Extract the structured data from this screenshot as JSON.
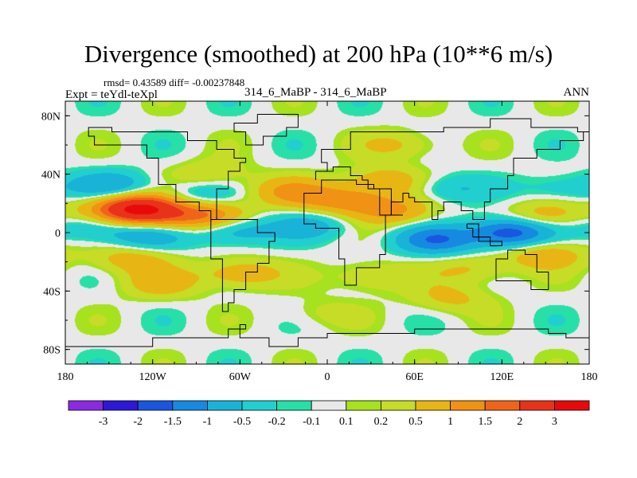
{
  "chart_data": {
    "type": "heatmap",
    "title": "Divergence (smoothed) at 200 hPa (10**6 m/s)",
    "stats_line": "rmsd= 0.43589 diff= -0.00237848",
    "left_label": "Expt = teYdl-teXpl",
    "center_label": "314_6_MaBP - 314_6_MaBP",
    "right_label": "ANN",
    "x_range": [
      -180,
      180
    ],
    "y_range": [
      -90,
      90
    ],
    "x_ticks": [
      {
        "value": -180,
        "label": "180"
      },
      {
        "value": -120,
        "label": "120W"
      },
      {
        "value": -60,
        "label": "60W"
      },
      {
        "value": 0,
        "label": "0"
      },
      {
        "value": 60,
        "label": "60E"
      },
      {
        "value": 120,
        "label": "120E"
      },
      {
        "value": 180,
        "label": "180"
      }
    ],
    "y_ticks": [
      {
        "value": 80,
        "label": "80N"
      },
      {
        "value": 40,
        "label": "40N"
      },
      {
        "value": 0,
        "label": "0"
      },
      {
        "value": -40,
        "label": "40S"
      },
      {
        "value": -80,
        "label": "80S"
      }
    ],
    "levels": [
      "-3",
      "-2",
      "-1.5",
      "-1",
      "-0.5",
      "-0.2",
      "-0.1",
      "0.1",
      "0.2",
      "0.5",
      "1",
      "1.5",
      "2",
      "3"
    ],
    "colors": [
      "#8a2be2",
      "#2d17d8",
      "#1a56e0",
      "#1689e0",
      "#1ab3d8",
      "#22cfcf",
      "#27e0a8",
      "#e8e8e8",
      "#a6e21e",
      "#c6dc26",
      "#e8b614",
      "#f09214",
      "#f0641a",
      "#e8321a",
      "#e80a0a"
    ],
    "fields": [
      {
        "lon": -128,
        "lat": 16,
        "value": 3.0
      },
      {
        "lon": -150,
        "lat": 16,
        "value": 0.7
      },
      {
        "lon": -100,
        "lat": 10,
        "value": 0.6
      },
      {
        "lon": -148,
        "lat": 32,
        "value": -0.9
      },
      {
        "lon": -160,
        "lat": 4,
        "value": -0.7
      },
      {
        "lon": -125,
        "lat": -3,
        "value": -0.8
      },
      {
        "lon": -135,
        "lat": -18,
        "value": 0.8
      },
      {
        "lon": -90,
        "lat": 25,
        "value": -0.6
      },
      {
        "lon": -80,
        "lat": 12,
        "value": 1.3
      },
      {
        "lon": -65,
        "lat": 2,
        "value": -1.0
      },
      {
        "lon": -60,
        "lat": -28,
        "value": 0.9
      },
      {
        "lon": -25,
        "lat": 28,
        "value": 1.0
      },
      {
        "lon": -10,
        "lat": 5,
        "value": -0.7
      },
      {
        "lon": 10,
        "lat": 22,
        "value": 1.2
      },
      {
        "lon": 40,
        "lat": 35,
        "value": 0.9
      },
      {
        "lon": 45,
        "lat": 15,
        "value": 1.1
      },
      {
        "lon": 80,
        "lat": 30,
        "value": -0.6
      },
      {
        "lon": 75,
        "lat": -5,
        "value": -1.4
      },
      {
        "lon": 125,
        "lat": 0,
        "value": -1.9
      },
      {
        "lon": 150,
        "lat": 12,
        "value": 0.8
      },
      {
        "lon": 150,
        "lat": -15,
        "value": 0.9
      },
      {
        "lon": 100,
        "lat": -25,
        "value": 0.6
      },
      {
        "lon": 30,
        "lat": -30,
        "value": 0.6
      },
      {
        "lon": -115,
        "lat": -35,
        "value": 0.7
      },
      {
        "lon": -80,
        "lat": 40,
        "value": 0.5
      },
      {
        "lon": 160,
        "lat": 30,
        "value": -0.5
      },
      {
        "lon": 85,
        "lat": -45,
        "value": 0.6
      },
      {
        "lon": -5,
        "lat": -55,
        "value": 0.3
      },
      {
        "lon": 50,
        "lat": 60,
        "value": 0.6
      }
    ],
    "coastlines": [
      [
        [
          -80,
          8
        ],
        [
          -78,
          30
        ],
        [
          -70,
          43
        ],
        [
          -60,
          47
        ],
        [
          -55,
          50
        ],
        [
          -65,
          58
        ],
        [
          -78,
          62
        ],
        [
          -95,
          68
        ],
        [
          -125,
          70
        ],
        [
          -150,
          71
        ],
        [
          -165,
          66
        ],
        [
          -160,
          59
        ],
        [
          -140,
          60
        ],
        [
          -125,
          50
        ],
        [
          -117,
          33
        ],
        [
          -105,
          20
        ],
        [
          -90,
          15
        ],
        [
          -80,
          8
        ]
      ],
      [
        [
          -80,
          10
        ],
        [
          -62,
          10
        ],
        [
          -50,
          0
        ],
        [
          -35,
          -7
        ],
        [
          -40,
          -22
        ],
        [
          -48,
          -28
        ],
        [
          -58,
          -38
        ],
        [
          -65,
          -48
        ],
        [
          -70,
          -55
        ],
        [
          -73,
          -45
        ],
        [
          -72,
          -18
        ],
        [
          -80,
          -2
        ],
        [
          -80,
          10
        ]
      ],
      [
        [
          -17,
          15
        ],
        [
          -17,
          28
        ],
        [
          -5,
          36
        ],
        [
          10,
          37
        ],
        [
          20,
          33
        ],
        [
          33,
          31
        ],
        [
          43,
          13
        ],
        [
          51,
          12
        ],
        [
          40,
          -15
        ],
        [
          35,
          -25
        ],
        [
          20,
          -35
        ],
        [
          12,
          -18
        ],
        [
          9,
          3
        ],
        [
          -8,
          5
        ],
        [
          -17,
          15
        ]
      ],
      [
        [
          -10,
          36
        ],
        [
          -9,
          43
        ],
        [
          0,
          48
        ],
        [
          -5,
          58
        ],
        [
          10,
          58
        ],
        [
          15,
          69
        ],
        [
          30,
          70
        ],
        [
          45,
          68
        ],
        [
          60,
          69
        ],
        [
          80,
          73
        ],
        [
          110,
          77
        ],
        [
          140,
          73
        ],
        [
          170,
          70
        ],
        [
          180,
          68
        ],
        [
          175,
          62
        ],
        [
          160,
          58
        ],
        [
          142,
          52
        ],
        [
          128,
          40
        ],
        [
          122,
          31
        ],
        [
          110,
          21
        ],
        [
          106,
          10
        ],
        [
          100,
          8
        ],
        [
          98,
          16
        ],
        [
          92,
          22
        ],
        [
          80,
          15
        ],
        [
          77,
          8
        ],
        [
          72,
          20
        ],
        [
          58,
          25
        ],
        [
          55,
          26
        ],
        [
          52,
          20
        ],
        [
          43,
          13
        ],
        [
          35,
          30
        ],
        [
          28,
          36
        ],
        [
          22,
          40
        ],
        [
          15,
          45
        ],
        [
          3,
          43
        ],
        [
          -10,
          36
        ]
      ],
      [
        [
          114,
          -22
        ],
        [
          114,
          -34
        ],
        [
          130,
          -32
        ],
        [
          140,
          -38
        ],
        [
          150,
          -37
        ],
        [
          153,
          -27
        ],
        [
          145,
          -15
        ],
        [
          137,
          -12
        ],
        [
          130,
          -12
        ],
        [
          122,
          -17
        ],
        [
          114,
          -22
        ]
      ],
      [
        [
          95,
          5
        ],
        [
          105,
          -6
        ],
        [
          118,
          -9
        ],
        [
          110,
          -3
        ],
        [
          100,
          2
        ],
        [
          95,
          5
        ]
      ],
      [
        [
          -180,
          -78
        ],
        [
          -150,
          -77
        ],
        [
          -120,
          -73
        ],
        [
          -90,
          -72
        ],
        [
          -70,
          -66
        ],
        [
          -58,
          -63
        ],
        [
          -60,
          -72
        ],
        [
          -40,
          -78
        ],
        [
          -20,
          -73
        ],
        [
          0,
          -70
        ],
        [
          30,
          -69
        ],
        [
          60,
          -67
        ],
        [
          90,
          -66
        ],
        [
          120,
          -66
        ],
        [
          150,
          -68
        ],
        [
          165,
          -72
        ],
        [
          180,
          -78
        ]
      ],
      [
        [
          -48,
          82
        ],
        [
          -20,
          81
        ],
        [
          -20,
          72
        ],
        [
          -30,
          66
        ],
        [
          -45,
          60
        ],
        [
          -55,
          68
        ],
        [
          -65,
          76
        ],
        [
          -48,
          82
        ]
      ]
    ]
  }
}
